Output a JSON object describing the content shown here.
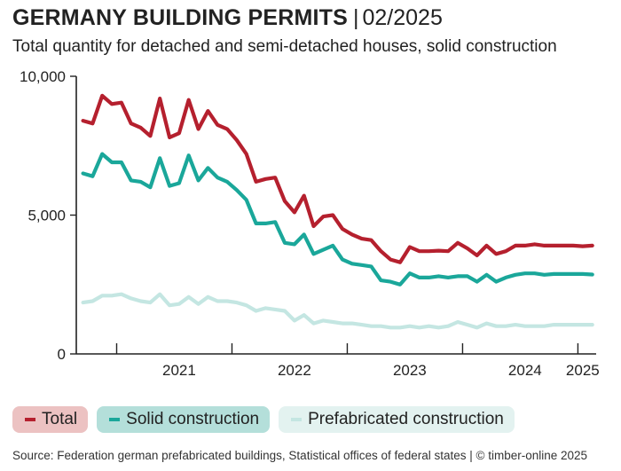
{
  "title": {
    "main": "GERMANY BUILDING PERMITS",
    "separator": "|",
    "date": "02/2025"
  },
  "subtitle": "Total quantity for detached and semi-detached houses, solid construction",
  "source": "Source: Federation german prefabricated buildings, Statistical offices of federal states | © timber-online 2025",
  "chart_data": {
    "type": "line",
    "title": "GERMANY BUILDING PERMITS | 02/2025",
    "subtitle": "Total quantity for detached and semi-detached houses, solid construction",
    "ylim": [
      0,
      10000
    ],
    "y_ticks": [
      {
        "value": 0,
        "label": "0"
      },
      {
        "value": 5000,
        "label": "5,000"
      },
      {
        "value": 10000,
        "label": "10,000"
      }
    ],
    "x_range": [
      "2020-09",
      "2025-02"
    ],
    "x_labels": [
      {
        "label": "2021",
        "at": "2021-07"
      },
      {
        "label": "2022",
        "at": "2022-07"
      },
      {
        "label": "2023",
        "at": "2023-07"
      },
      {
        "label": "2024",
        "at": "2024-07"
      },
      {
        "label": "2025",
        "at": "2025-01"
      }
    ],
    "year_boundaries": [
      "2021-01",
      "2022-01",
      "2023-01",
      "2024-01",
      "2025-01"
    ],
    "x": [
      "2020-09",
      "2020-10",
      "2020-11",
      "2020-12",
      "2021-01",
      "2021-02",
      "2021-03",
      "2021-04",
      "2021-05",
      "2021-06",
      "2021-07",
      "2021-08",
      "2021-09",
      "2021-10",
      "2021-11",
      "2021-12",
      "2022-01",
      "2022-02",
      "2022-03",
      "2022-04",
      "2022-05",
      "2022-06",
      "2022-07",
      "2022-08",
      "2022-09",
      "2022-10",
      "2022-11",
      "2022-12",
      "2023-01",
      "2023-02",
      "2023-03",
      "2023-04",
      "2023-05",
      "2023-06",
      "2023-07",
      "2023-08",
      "2023-09",
      "2023-10",
      "2023-11",
      "2023-12",
      "2024-01",
      "2024-02",
      "2024-03",
      "2024-04",
      "2024-05",
      "2024-06",
      "2024-07",
      "2024-08",
      "2024-09",
      "2024-10",
      "2024-11",
      "2024-12",
      "2025-01",
      "2025-02"
    ],
    "series": [
      {
        "name": "Total",
        "color": "#b5202e",
        "values": [
          8400,
          8300,
          9300,
          9000,
          9050,
          8300,
          8150,
          7850,
          9200,
          7800,
          7950,
          9150,
          8100,
          8750,
          8250,
          8100,
          7700,
          7200,
          6200,
          6300,
          6350,
          5500,
          5100,
          5700,
          4600,
          4950,
          5000,
          4500,
          4300,
          4150,
          4100,
          3700,
          3400,
          3300,
          3850,
          3700,
          3700,
          3720,
          3700,
          4000,
          3800,
          3550,
          3900,
          3600,
          3700,
          3900,
          3900,
          3950,
          3900,
          3900,
          3900,
          3900,
          3880,
          3900
        ]
      },
      {
        "name": "Solid construction",
        "color": "#1aa79a",
        "values": [
          6500,
          6400,
          7200,
          6900,
          6900,
          6250,
          6200,
          6000,
          7050,
          6050,
          6150,
          7150,
          6250,
          6700,
          6350,
          6200,
          5900,
          5550,
          4700,
          4700,
          4750,
          4000,
          3950,
          4300,
          3600,
          3750,
          3900,
          3400,
          3250,
          3200,
          3150,
          2650,
          2600,
          2500,
          2900,
          2750,
          2750,
          2800,
          2750,
          2800,
          2800,
          2600,
          2850,
          2600,
          2750,
          2850,
          2900,
          2900,
          2850,
          2880,
          2880,
          2880,
          2880,
          2860
        ]
      },
      {
        "name": "Prefabricated construction",
        "color": "#c4e6e2",
        "values": [
          1850,
          1900,
          2100,
          2100,
          2150,
          2000,
          1900,
          1850,
          2150,
          1750,
          1800,
          2050,
          1800,
          2050,
          1900,
          1900,
          1850,
          1750,
          1550,
          1650,
          1600,
          1550,
          1200,
          1400,
          1100,
          1200,
          1150,
          1100,
          1100,
          1050,
          1000,
          1000,
          950,
          950,
          1000,
          950,
          1000,
          950,
          1000,
          1150,
          1050,
          950,
          1100,
          1000,
          1000,
          1050,
          1000,
          1000,
          1000,
          1050,
          1050,
          1050,
          1050,
          1050
        ]
      }
    ],
    "legend": {
      "placement": "bottom-left",
      "items": [
        {
          "label": "Total",
          "bg": "#ecc2c2",
          "swatch": "#b5202e"
        },
        {
          "label": "Solid construction",
          "bg": "#b4dfda",
          "swatch": "#1aa79a"
        },
        {
          "label": "Prefabricated construction",
          "bg": "#e3f2f0",
          "swatch": "#c4e6e2"
        }
      ]
    },
    "grid": false
  }
}
